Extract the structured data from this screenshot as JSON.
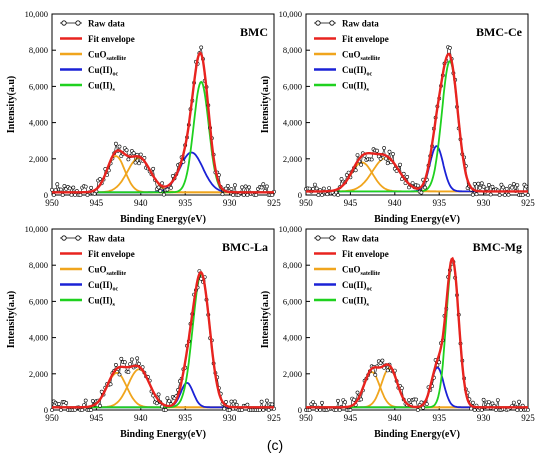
{
  "figure": {
    "caption": "(c)",
    "colors": {
      "raw": "#000000",
      "envelope": "#e8231f",
      "satellite": "#f0a51d",
      "cu_oc": "#1b22d6",
      "cu_s": "#1fd11f"
    }
  },
  "chart_data": [
    {
      "type": "line",
      "title": "BMC",
      "xlabel": "Binding Energy(eV)",
      "ylabel": "Intensity(a.u)",
      "xlim": [
        950,
        925
      ],
      "ylim": [
        0,
        10000
      ],
      "x_reversed": true,
      "xticks": [
        950,
        945,
        940,
        935,
        930,
        925
      ],
      "yticks": [
        "0",
        "2,000",
        "4,000",
        "6,000",
        "8,000",
        "10,000"
      ],
      "legend_position": "top-left",
      "grid": false,
      "series": [
        {
          "name": "Raw data",
          "kind": "markers+line"
        },
        {
          "name": "Fit envelope",
          "kind": "line"
        },
        {
          "name": "CuO satellite",
          "label_main": "CuO",
          "label_sub": "satellite",
          "kind": "line"
        },
        {
          "name": "Cu(II)oc",
          "label_main": "Cu(II)",
          "label_sub": "oc",
          "kind": "line"
        },
        {
          "name": "Cu(II)s",
          "label_main": "Cu(II)",
          "label_sub": "s",
          "kind": "line"
        }
      ],
      "peaks": {
        "satellite": [
          [
            942.8,
            2000,
            1.0
          ],
          [
            940.2,
            1900,
            1.3
          ]
        ],
        "cu_oc": [
          [
            934.3,
            2200,
            1.3
          ]
        ],
        "cu_s": [
          [
            933.2,
            6100,
            0.85
          ]
        ]
      },
      "baseline": 150
    },
    {
      "type": "line",
      "title": "BMC-Ce",
      "xlabel": "Binding Energy(eV)",
      "ylabel": "Intensity(a.u)",
      "xlim": [
        950,
        925
      ],
      "ylim": [
        0,
        10000
      ],
      "x_reversed": true,
      "xticks": [
        950,
        945,
        940,
        935,
        930,
        925
      ],
      "yticks": [
        "0",
        "2,000",
        "4,000",
        "6,000",
        "8,000",
        "10,000"
      ],
      "legend_position": "top-left",
      "grid": false,
      "series": [
        {
          "name": "Raw data",
          "kind": "markers+line"
        },
        {
          "name": "Fit envelope",
          "kind": "line"
        },
        {
          "name": "CuO satellite",
          "label_main": "CuO",
          "label_sub": "satellite",
          "kind": "line"
        },
        {
          "name": "Cu(II)oc",
          "label_main": "Cu(II)",
          "label_sub": "oc",
          "kind": "line"
        },
        {
          "name": "Cu(II)s",
          "label_main": "Cu(II)",
          "label_sub": "s",
          "kind": "line"
        }
      ],
      "peaks": {
        "satellite": [
          [
            943.7,
            1600,
            1.2
          ],
          [
            941.0,
            1850,
            1.5
          ]
        ],
        "cu_oc": [
          [
            935.3,
            2500,
            0.75
          ]
        ],
        "cu_s": [
          [
            933.8,
            7200,
            0.9
          ]
        ]
      },
      "baseline": 200
    },
    {
      "type": "line",
      "title": "BMC-La",
      "xlabel": "Binding Energy(eV)",
      "ylabel": "Intensity(a.u)",
      "xlim": [
        950,
        925
      ],
      "ylim": [
        0,
        10000
      ],
      "x_reversed": true,
      "xticks": [
        950,
        945,
        940,
        935,
        930,
        925
      ],
      "yticks": [
        "0",
        "2,000",
        "4,000",
        "6,000",
        "8,000",
        "10,000"
      ],
      "legend_position": "top-left",
      "grid": false,
      "series": [
        {
          "name": "Raw data",
          "kind": "markers+line"
        },
        {
          "name": "Fit envelope",
          "kind": "line"
        },
        {
          "name": "CuO satellite",
          "label_main": "CuO",
          "label_sub": "satellite",
          "kind": "line"
        },
        {
          "name": "Cu(II)oc",
          "label_main": "Cu(II)",
          "label_sub": "oc",
          "kind": "line"
        },
        {
          "name": "Cu(II)s",
          "label_main": "Cu(II)",
          "label_sub": "s",
          "kind": "line"
        }
      ],
      "peaks": {
        "satellite": [
          [
            942.7,
            1900,
            1.1
          ],
          [
            940.2,
            2100,
            1.2
          ]
        ],
        "cu_oc": [
          [
            934.8,
            1350,
            0.7
          ]
        ],
        "cu_s": [
          [
            933.2,
            7350,
            0.95
          ]
        ]
      },
      "baseline": 150
    },
    {
      "type": "line",
      "title": "BMC-Mg",
      "xlabel": "Binding Energy(eV)",
      "ylabel": "Intensity(a.u)",
      "xlim": [
        950,
        925
      ],
      "ylim": [
        0,
        10000
      ],
      "x_reversed": true,
      "xticks": [
        950,
        945,
        940,
        935,
        930,
        925
      ],
      "yticks": [
        "0",
        "2,000",
        "4,000",
        "6,000",
        "8,000",
        "10,000"
      ],
      "legend_position": "top-left",
      "grid": false,
      "series": [
        {
          "name": "Raw data",
          "kind": "markers+line"
        },
        {
          "name": "Fit envelope",
          "kind": "line"
        },
        {
          "name": "CuO satellite",
          "label_main": "CuO",
          "label_sub": "satellite",
          "kind": "line"
        },
        {
          "name": "Cu(II)oc",
          "label_main": "Cu(II)",
          "label_sub": "oc",
          "kind": "line"
        },
        {
          "name": "Cu(II)s",
          "label_main": "Cu(II)",
          "label_sub": "s",
          "kind": "line"
        }
      ],
      "peaks": {
        "satellite": [
          [
            942.6,
            1950,
            0.9
          ],
          [
            940.6,
            2150,
            0.9
          ]
        ],
        "cu_oc": [
          [
            935.2,
            2200,
            0.7
          ]
        ],
        "cu_s": [
          [
            933.5,
            8100,
            0.7
          ]
        ]
      },
      "baseline": 150
    }
  ]
}
